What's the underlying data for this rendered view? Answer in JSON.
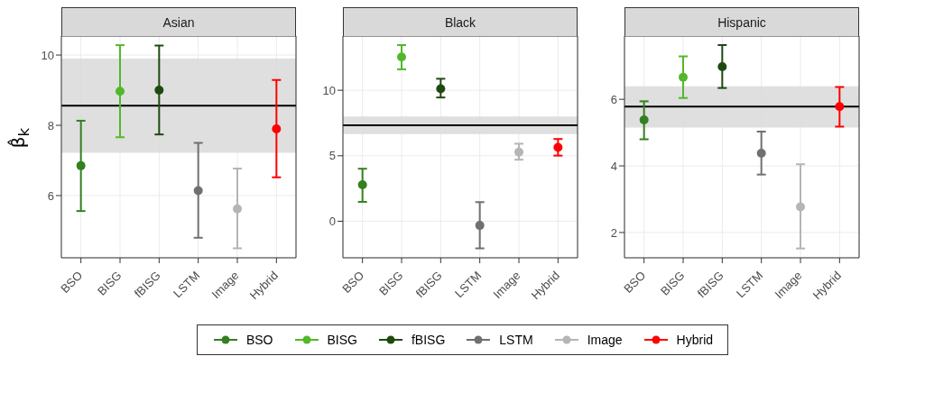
{
  "chart_data": [
    {
      "type": "scatter",
      "title": "Asian",
      "ylabel": "β̂$_{k}$",
      "categories": [
        "BSO",
        "BISG",
        "fBISG",
        "LSTM",
        "Image",
        "Hybrid"
      ],
      "ylim": [
        4.23,
        10.54
      ],
      "yticks": [
        6,
        8,
        10
      ],
      "grid": true,
      "marker": "circle",
      "legend": "bottom",
      "series": [
        {
          "name": "BSO",
          "color": "#33801f",
          "values": [
            6.85,
            null,
            null,
            null,
            null,
            null
          ],
          "errors": [
            [
              5.56,
              8.13
            ],
            null,
            null,
            null,
            null,
            null
          ]
        },
        {
          "name": "BISG",
          "color": "#52b82a",
          "values": [
            null,
            8.97,
            null,
            null,
            null,
            null
          ],
          "errors": [
            null,
            [
              7.66,
              10.28
            ],
            null,
            null,
            null,
            null
          ]
        },
        {
          "name": "fBISG",
          "color": "#1e4a10",
          "values": [
            null,
            null,
            9.0,
            null,
            null,
            null
          ],
          "errors": [
            null,
            null,
            [
              7.74,
              10.27
            ],
            null,
            null,
            null
          ]
        },
        {
          "name": "LSTM",
          "color": "#707070",
          "values": [
            null,
            null,
            null,
            6.14,
            null,
            null
          ],
          "errors": [
            null,
            null,
            null,
            [
              4.8,
              7.5
            ],
            null,
            null
          ]
        },
        {
          "name": "Image",
          "color": "#b5b5b5",
          "values": [
            null,
            null,
            null,
            null,
            5.62,
            null
          ],
          "errors": [
            null,
            null,
            null,
            null,
            [
              4.5,
              6.77
            ],
            null
          ]
        },
        {
          "name": "Hybrid",
          "color": "#ff0000",
          "values": [
            null,
            null,
            null,
            null,
            null,
            7.9
          ],
          "errors": [
            null,
            null,
            null,
            null,
            null,
            [
              6.52,
              9.29
            ]
          ]
        }
      ],
      "ref_lines": [
        {
          "axis": "y",
          "value": 8.56,
          "color": "#000000"
        }
      ],
      "bands": [
        {
          "axis": "y",
          "from": 7.22,
          "to": 9.9,
          "color": "#d9d9d9"
        }
      ]
    },
    {
      "type": "scatter",
      "title": "Black",
      "categories": [
        "BSO",
        "BISG",
        "fBISG",
        "LSTM",
        "Image",
        "Hybrid"
      ],
      "ylim": [
        -2.79,
        14.14
      ],
      "yticks": [
        0,
        5,
        10
      ],
      "grid": true,
      "marker": "circle",
      "series": [
        {
          "color": "#33801f",
          "values": [
            2.79,
            null,
            null,
            null,
            null,
            null
          ],
          "errors": [
            [
              1.48,
              4.01
            ],
            null,
            null,
            null,
            null,
            null
          ]
        },
        {
          "color": "#52b82a",
          "values": [
            null,
            12.54,
            null,
            null,
            null,
            null
          ],
          "errors": [
            null,
            [
              11.6,
              13.45
            ],
            null,
            null,
            null,
            null
          ]
        },
        {
          "color": "#1e4a10",
          "values": [
            null,
            null,
            10.12,
            null,
            null,
            null
          ],
          "errors": [
            null,
            null,
            [
              9.45,
              10.88
            ],
            null,
            null,
            null
          ]
        },
        {
          "color": "#707070",
          "values": [
            null,
            null,
            null,
            -0.32,
            null,
            null
          ],
          "errors": [
            null,
            null,
            null,
            [
              -2.07,
              1.46
            ],
            null,
            null
          ]
        },
        {
          "color": "#b5b5b5",
          "values": [
            null,
            null,
            null,
            null,
            5.28,
            null
          ],
          "errors": [
            null,
            null,
            null,
            null,
            [
              4.7,
              5.92
            ],
            null
          ]
        },
        {
          "color": "#ff0000",
          "values": [
            null,
            null,
            null,
            null,
            null,
            5.64
          ],
          "errors": [
            null,
            null,
            null,
            null,
            null,
            [
              5.01,
              6.28
            ]
          ]
        }
      ],
      "ref_lines": [
        {
          "axis": "y",
          "value": 7.33,
          "color": "#000000"
        }
      ],
      "bands": [
        {
          "axis": "y",
          "from": 6.66,
          "to": 8.0,
          "color": "#d9d9d9"
        }
      ]
    },
    {
      "type": "scatter",
      "title": "Hispanic",
      "categories": [
        "BSO",
        "BISG",
        "fBISG",
        "LSTM",
        "Image",
        "Hybrid"
      ],
      "ylim": [
        1.24,
        7.9
      ],
      "yticks": [
        2,
        4,
        6
      ],
      "grid": true,
      "marker": "circle",
      "series": [
        {
          "color": "#33801f",
          "values": [
            5.38,
            null,
            null,
            null,
            null,
            null
          ],
          "errors": [
            [
              4.8,
              5.94
            ],
            null,
            null,
            null,
            null,
            null
          ]
        },
        {
          "color": "#52b82a",
          "values": [
            null,
            6.66,
            null,
            null,
            null,
            null
          ],
          "errors": [
            null,
            [
              6.04,
              7.29
            ],
            null,
            null,
            null,
            null
          ]
        },
        {
          "color": "#1e4a10",
          "values": [
            null,
            null,
            6.98,
            null,
            null,
            null
          ],
          "errors": [
            null,
            null,
            [
              6.34,
              7.63
            ],
            null,
            null,
            null
          ]
        },
        {
          "color": "#707070",
          "values": [
            null,
            null,
            null,
            4.38,
            null,
            null
          ],
          "errors": [
            null,
            null,
            null,
            [
              3.74,
              5.03
            ],
            null,
            null
          ]
        },
        {
          "color": "#b5b5b5",
          "values": [
            null,
            null,
            null,
            null,
            2.77,
            null
          ],
          "errors": [
            null,
            null,
            null,
            null,
            [
              1.52,
              4.05
            ],
            null
          ]
        },
        {
          "color": "#ff0000",
          "values": [
            null,
            null,
            null,
            null,
            null,
            5.78
          ],
          "errors": [
            null,
            null,
            null,
            null,
            null,
            [
              5.18,
              6.37
            ]
          ]
        }
      ],
      "ref_lines": [
        {
          "axis": "y",
          "value": 5.78,
          "color": "#000000"
        }
      ],
      "bands": [
        {
          "axis": "y",
          "from": 5.15,
          "to": 6.39,
          "color": "#d9d9d9"
        }
      ]
    }
  ]
}
